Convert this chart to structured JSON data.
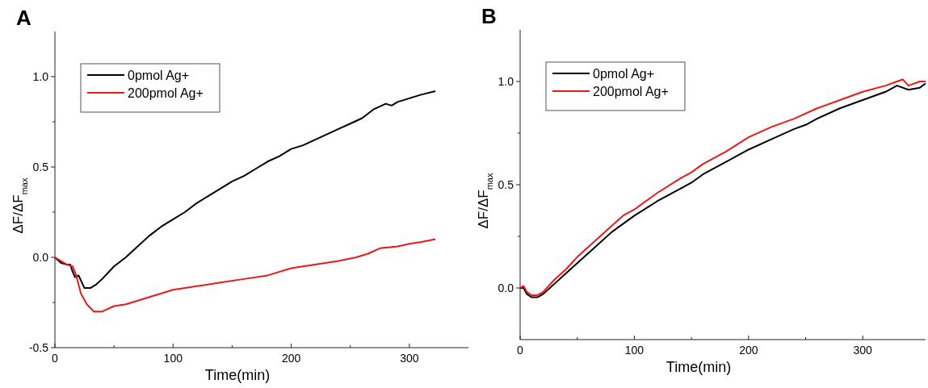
{
  "chart_data": [
    {
      "type": "line",
      "title": "A",
      "xlabel": "Time(min)",
      "ylabel": "ΔF/ΔF$_{max}$",
      "legend": "top left",
      "xlim": [
        0,
        350
      ],
      "ylim": [
        -0.5,
        1.25
      ],
      "xticks": [
        0,
        {
          "value": 50,
          "label": null
        },
        100,
        {
          "value": 150,
          "label": null
        },
        200,
        {
          "value": 250,
          "label": null
        },
        300
      ],
      "yticks": [
        {
          "value": -0.5,
          "label": "-0.5"
        },
        {
          "value": -0.25,
          "label": null
        },
        {
          "value": 0,
          "label": "0.0"
        },
        {
          "value": 0.25,
          "label": null
        },
        {
          "value": 0.5,
          "label": "0.5"
        },
        {
          "value": 0.75,
          "label": null
        },
        {
          "value": 1,
          "label": "1.0"
        }
      ],
      "series": [
        {
          "name": "0pmol Ag+",
          "color": "#000000",
          "x": [
            0,
            5,
            10,
            13,
            15,
            17,
            20,
            25,
            30,
            35,
            40,
            50,
            60,
            70,
            80,
            90,
            100,
            110,
            120,
            130,
            140,
            150,
            160,
            170,
            180,
            190,
            200,
            210,
            220,
            230,
            240,
            250,
            260,
            270,
            280,
            285,
            290,
            300,
            310,
            322
          ],
          "values": [
            0,
            -0.03,
            -0.04,
            -0.04,
            -0.08,
            -0.11,
            -0.1,
            -0.17,
            -0.17,
            -0.15,
            -0.12,
            -0.05,
            0,
            0.06,
            0.12,
            0.17,
            0.21,
            0.25,
            0.3,
            0.34,
            0.38,
            0.42,
            0.45,
            0.49,
            0.53,
            0.56,
            0.6,
            0.62,
            0.65,
            0.68,
            0.71,
            0.74,
            0.77,
            0.82,
            0.85,
            0.84,
            0.86,
            0.88,
            0.9,
            0.92
          ]
        },
        {
          "name": "200pmol Ag+",
          "color": "#e8191b",
          "x": [
            0,
            10,
            15,
            18,
            22,
            27,
            33,
            40,
            50,
            60,
            70,
            80,
            90,
            100,
            120,
            140,
            160,
            180,
            200,
            220,
            240,
            255,
            265,
            275,
            290,
            300,
            310,
            322
          ],
          "values": [
            0,
            -0.04,
            -0.05,
            -0.1,
            -0.2,
            -0.26,
            -0.3,
            -0.3,
            -0.27,
            -0.26,
            -0.24,
            -0.22,
            -0.2,
            -0.18,
            -0.16,
            -0.14,
            -0.12,
            -0.1,
            -0.06,
            -0.04,
            -0.02,
            0,
            0.02,
            0.05,
            0.06,
            0.075,
            0.085,
            0.1
          ]
        }
      ]
    },
    {
      "type": "line",
      "title": "B",
      "xlabel": "Time(min)",
      "ylabel": "ΔF/ΔF$_{max}$",
      "legend": "top left",
      "xlim": [
        0,
        355
      ],
      "ylim": [
        -0.25,
        1.25
      ],
      "xticks": [
        0,
        {
          "value": 50,
          "label": null
        },
        100,
        {
          "value": 150,
          "label": null
        },
        200,
        {
          "value": 250,
          "label": null
        },
        300
      ],
      "yticks": [
        {
          "value": 0,
          "label": "0.0"
        },
        {
          "value": 0.25,
          "label": null
        },
        {
          "value": 0.5,
          "label": "0.5"
        },
        {
          "value": 0.75,
          "label": null
        },
        {
          "value": 1,
          "label": "1.0"
        }
      ],
      "series": [
        {
          "name": "0pmol Ag+",
          "color": "#000000",
          "x": [
            0,
            3,
            6,
            10,
            15,
            20,
            30,
            40,
            50,
            60,
            70,
            80,
            90,
            100,
            120,
            140,
            150,
            160,
            180,
            200,
            220,
            240,
            250,
            260,
            280,
            300,
            320,
            330,
            340,
            350,
            355
          ],
          "values": [
            0,
            0,
            -0.03,
            -0.045,
            -0.045,
            -0.03,
            0.02,
            0.07,
            0.12,
            0.17,
            0.22,
            0.27,
            0.31,
            0.35,
            0.42,
            0.48,
            0.51,
            0.55,
            0.61,
            0.67,
            0.72,
            0.77,
            0.79,
            0.82,
            0.87,
            0.91,
            0.95,
            0.98,
            0.96,
            0.97,
            0.99
          ]
        },
        {
          "name": "200pmol Ag+",
          "color": "#e8191b",
          "x": [
            0,
            3,
            6,
            10,
            15,
            20,
            30,
            40,
            50,
            60,
            70,
            80,
            90,
            100,
            120,
            140,
            150,
            160,
            180,
            200,
            220,
            240,
            260,
            280,
            300,
            320,
            330,
            335,
            340,
            350,
            355
          ],
          "values": [
            0,
            0.01,
            -0.02,
            -0.035,
            -0.035,
            -0.02,
            0.04,
            0.09,
            0.15,
            0.2,
            0.25,
            0.3,
            0.35,
            0.38,
            0.46,
            0.53,
            0.56,
            0.6,
            0.66,
            0.73,
            0.78,
            0.82,
            0.87,
            0.91,
            0.95,
            0.98,
            1,
            1.01,
            0.98,
            1,
            1
          ]
        }
      ]
    }
  ]
}
